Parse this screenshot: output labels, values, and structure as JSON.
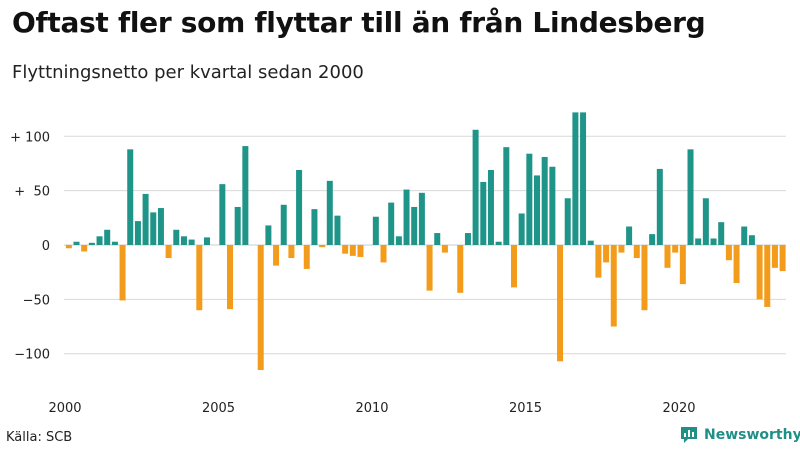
{
  "title": "Oftast fler som flyttar till än från Lindesberg",
  "subtitle": "Flyttningsnetto per kvartal sedan 2000",
  "source": "Källa: SCB",
  "brand": {
    "name": "Newsworthy",
    "icon": "newsworthy-logo-icon"
  },
  "colors": {
    "positive": "#1f9488",
    "negative": "#f39c1b",
    "grid": "#d8d8d8",
    "text": "#222222"
  },
  "chart_data": {
    "type": "bar",
    "title": "Oftast fler som flyttar till än från Lindesberg",
    "subtitle": "Flyttningsnetto per kvartal sedan 2000",
    "xlabel": "",
    "ylabel": "",
    "ylim": [
      -120,
      125
    ],
    "grid": true,
    "x_ticks": [
      {
        "year": 2000,
        "label": "2000"
      },
      {
        "year": 2005,
        "label": "2005"
      },
      {
        "year": 2010,
        "label": "2010"
      },
      {
        "year": 2015,
        "label": "2015"
      },
      {
        "year": 2020,
        "label": "2020"
      }
    ],
    "y_ticks": [
      {
        "value": 100,
        "label": "+ 100"
      },
      {
        "value": 50,
        "label": "+  50"
      },
      {
        "value": 0,
        "label": "0"
      },
      {
        "value": -50,
        "label": "−50"
      },
      {
        "value": -100,
        "label": "−100"
      }
    ],
    "start_year": 2000,
    "start_quarter": 1,
    "values": [
      -3,
      3,
      -6,
      2,
      8,
      14,
      3,
      -51,
      88,
      22,
      47,
      30,
      34,
      -12,
      14,
      8,
      5,
      -60,
      7,
      0,
      56,
      -59,
      35,
      91,
      0,
      -115,
      18,
      -19,
      37,
      -12,
      69,
      -22,
      33,
      -2,
      59,
      27,
      -8,
      -10,
      -11,
      0,
      26,
      -16,
      39,
      8,
      51,
      35,
      48,
      -42,
      11,
      -7,
      0,
      -44,
      11,
      106,
      58,
      69,
      3,
      90,
      -39,
      29,
      84,
      64,
      81,
      72,
      -107,
      43,
      122,
      122,
      4,
      -30,
      -16,
      -75,
      -7,
      17,
      -12,
      -60,
      10,
      70,
      -21,
      -7,
      -36,
      88,
      6,
      43,
      6,
      21,
      -14,
      -35,
      17,
      9,
      -50,
      -57,
      -21,
      -24
    ]
  }
}
